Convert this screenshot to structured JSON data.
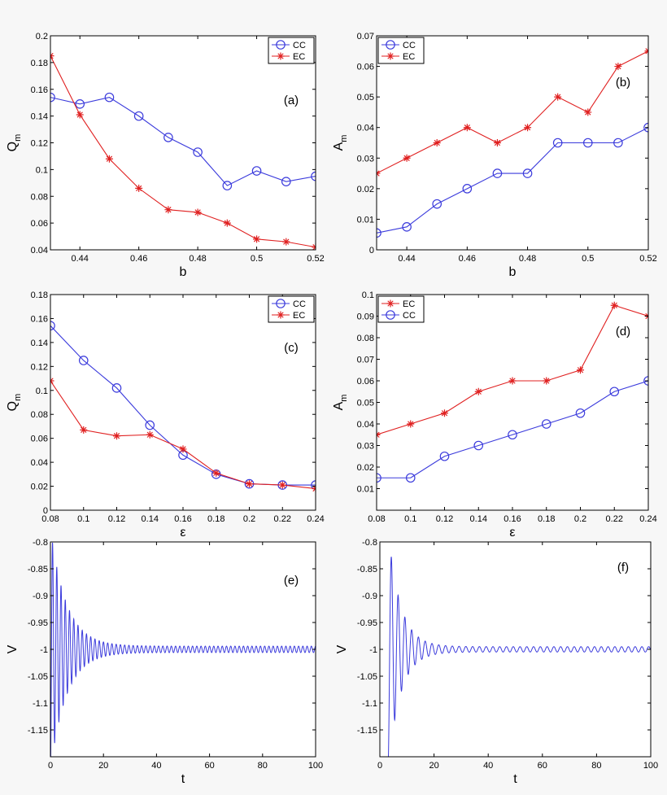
{
  "colors": {
    "cc": "#3b3bdc",
    "ec": "#e02020",
    "axis": "#000000",
    "bg": "#f7f7f7",
    "panel_bg": "#ffffff"
  },
  "chart_data": [
    {
      "id": "a",
      "type": "line",
      "panel_label": "(a)",
      "xlabel": "b",
      "ylabel_main": "Q",
      "ylabel_sub": "m",
      "xlim": [
        0.43,
        0.52
      ],
      "ylim": [
        0.04,
        0.2
      ],
      "xticks": [
        0.44,
        0.46,
        0.48,
        0.5,
        0.52
      ],
      "xtick_labels": [
        "0.44",
        "0.46",
        "0.48",
        "0.5",
        "0.52"
      ],
      "yticks": [
        0.04,
        0.06,
        0.08,
        0.1,
        0.12,
        0.14,
        0.16,
        0.18,
        0.2
      ],
      "ytick_labels": [
        "0.04",
        "0.06",
        "0.08",
        "0.1",
        "0.12",
        "0.14",
        "0.16",
        "0.18",
        "0.2"
      ],
      "legend": "top-right",
      "series": [
        {
          "name": "CC",
          "marker": "circle",
          "color": "#3b3bdc",
          "x": [
            0.43,
            0.44,
            0.45,
            0.46,
            0.47,
            0.48,
            0.49,
            0.5,
            0.51,
            0.52
          ],
          "y": [
            0.154,
            0.149,
            0.154,
            0.14,
            0.124,
            0.113,
            0.088,
            0.099,
            0.091,
            0.095
          ]
        },
        {
          "name": "EC",
          "marker": "star",
          "color": "#e02020",
          "x": [
            0.43,
            0.44,
            0.45,
            0.46,
            0.47,
            0.48,
            0.49,
            0.5,
            0.51,
            0.52
          ],
          "y": [
            0.185,
            0.141,
            0.108,
            0.086,
            0.07,
            0.068,
            0.06,
            0.048,
            0.046,
            0.042
          ]
        }
      ]
    },
    {
      "id": "b",
      "type": "line",
      "panel_label": "(b)",
      "xlabel": "b",
      "ylabel_main": "A",
      "ylabel_sub": "m",
      "xlim": [
        0.43,
        0.52
      ],
      "ylim": [
        0,
        0.07
      ],
      "xticks": [
        0.44,
        0.46,
        0.48,
        0.5,
        0.52
      ],
      "xtick_labels": [
        "0.44",
        "0.46",
        "0.48",
        "0.5",
        "0.52"
      ],
      "yticks": [
        0,
        0.01,
        0.02,
        0.03,
        0.04,
        0.05,
        0.06,
        0.07
      ],
      "ytick_labels": [
        "0",
        "0.01",
        "0.02",
        "0.03",
        "0.04",
        "0.05",
        "0.06",
        "0.07"
      ],
      "legend": "top-left",
      "series": [
        {
          "name": "CC",
          "marker": "circle",
          "color": "#3b3bdc",
          "x": [
            0.43,
            0.44,
            0.45,
            0.46,
            0.47,
            0.48,
            0.49,
            0.5,
            0.51,
            0.52
          ],
          "y": [
            0.0055,
            0.0075,
            0.015,
            0.02,
            0.025,
            0.025,
            0.035,
            0.035,
            0.035,
            0.04
          ]
        },
        {
          "name": "EC",
          "marker": "star",
          "color": "#e02020",
          "x": [
            0.43,
            0.44,
            0.45,
            0.46,
            0.47,
            0.48,
            0.49,
            0.5,
            0.51,
            0.52
          ],
          "y": [
            0.025,
            0.03,
            0.035,
            0.04,
            0.035,
            0.04,
            0.05,
            0.045,
            0.06,
            0.065
          ]
        }
      ]
    },
    {
      "id": "c",
      "type": "line",
      "panel_label": "(c)",
      "xlabel": "ε",
      "ylabel_main": "Q",
      "ylabel_sub": "m",
      "xlim": [
        0.08,
        0.24
      ],
      "ylim": [
        0,
        0.18
      ],
      "xticks": [
        0.08,
        0.1,
        0.12,
        0.14,
        0.16,
        0.18,
        0.2,
        0.22,
        0.24
      ],
      "xtick_labels": [
        "0.08",
        "0.1",
        "0.12",
        "0.14",
        "0.16",
        "0.18",
        "0.2",
        "0.22",
        "0.24"
      ],
      "yticks": [
        0,
        0.02,
        0.04,
        0.06,
        0.08,
        0.1,
        0.12,
        0.14,
        0.16,
        0.18
      ],
      "ytick_labels": [
        "0",
        "0.02",
        "0.04",
        "0.06",
        "0.08",
        "0.1",
        "0.12",
        "0.14",
        "0.16",
        "0.18"
      ],
      "legend": "top-right",
      "series": [
        {
          "name": "CC",
          "marker": "circle",
          "color": "#3b3bdc",
          "x": [
            0.08,
            0.1,
            0.12,
            0.14,
            0.16,
            0.18,
            0.2,
            0.22,
            0.24
          ],
          "y": [
            0.154,
            0.125,
            0.102,
            0.071,
            0.046,
            0.03,
            0.022,
            0.021,
            0.021
          ]
        },
        {
          "name": "EC",
          "marker": "star",
          "color": "#e02020",
          "x": [
            0.08,
            0.1,
            0.12,
            0.14,
            0.16,
            0.18,
            0.2,
            0.22,
            0.24
          ],
          "y": [
            0.108,
            0.067,
            0.062,
            0.063,
            0.051,
            0.031,
            0.022,
            0.021,
            0.018
          ]
        }
      ]
    },
    {
      "id": "d",
      "type": "line",
      "panel_label": "(d)",
      "xlabel": "ε",
      "ylabel_main": "A",
      "ylabel_sub": "m",
      "xlim": [
        0.08,
        0.24
      ],
      "ylim": [
        0,
        0.1
      ],
      "xticks": [
        0.08,
        0.1,
        0.12,
        0.14,
        0.16,
        0.18,
        0.2,
        0.22,
        0.24
      ],
      "xtick_labels": [
        "0.08",
        "0.1",
        "0.12",
        "0.14",
        "0.16",
        "0.18",
        "0.2",
        "0.22",
        "0.24"
      ],
      "yticks": [
        0.01,
        0.02,
        0.03,
        0.04,
        0.05,
        0.06,
        0.07,
        0.08,
        0.09,
        0.1
      ],
      "ytick_labels": [
        "0.01",
        "0.02",
        "0.03",
        "0.04",
        "0.05",
        "0.06",
        "0.07",
        "0.08",
        "0.09",
        "0.1"
      ],
      "legend": "top-left",
      "series": [
        {
          "name": "EC",
          "marker": "star",
          "color": "#e02020",
          "x": [
            0.08,
            0.1,
            0.12,
            0.14,
            0.16,
            0.18,
            0.2,
            0.22,
            0.24
          ],
          "y": [
            0.035,
            0.04,
            0.045,
            0.055,
            0.06,
            0.06,
            0.065,
            0.095,
            0.09
          ]
        },
        {
          "name": "CC",
          "marker": "circle",
          "color": "#3b3bdc",
          "x": [
            0.08,
            0.1,
            0.12,
            0.14,
            0.16,
            0.18,
            0.2,
            0.22,
            0.24
          ],
          "y": [
            0.015,
            0.015,
            0.025,
            0.03,
            0.035,
            0.04,
            0.045,
            0.055,
            0.06
          ]
        }
      ]
    },
    {
      "id": "e",
      "type": "line",
      "panel_label": "(e)",
      "xlabel": "t",
      "ylabel_main": "V",
      "ylabel_sub": "",
      "xlim": [
        0,
        100
      ],
      "ylim": [
        -1.2,
        -0.8
      ],
      "xticks": [
        0,
        20,
        40,
        60,
        80,
        100
      ],
      "xtick_labels": [
        "0",
        "20",
        "40",
        "60",
        "80",
        "100"
      ],
      "yticks": [
        -1.15,
        -1.1,
        -1.05,
        -1,
        -0.95,
        -0.9,
        -0.85,
        -0.8
      ],
      "ytick_labels": [
        "-1.15",
        "-1.1",
        "-1.05",
        "-1",
        "-0.95",
        "-0.9",
        "-0.85",
        "-0.8"
      ],
      "legend": "none",
      "signal": {
        "baseline": -1.0,
        "initial_amplitude": 0.22,
        "decay_time": 6.0,
        "steady_amplitude": 0.006,
        "period": 1.6,
        "t_start": 0,
        "t_end": 100,
        "color": "#3b3bdc"
      }
    },
    {
      "id": "f",
      "type": "line",
      "panel_label": "(f)",
      "xlabel": "t",
      "ylabel_main": "V",
      "ylabel_sub": "",
      "xlim": [
        0,
        100
      ],
      "ylim": [
        -1.2,
        -0.8
      ],
      "xticks": [
        0,
        20,
        40,
        60,
        80,
        100
      ],
      "xtick_labels": [
        "0",
        "20",
        "40",
        "60",
        "80",
        "100"
      ],
      "yticks": [
        -1.15,
        -1.1,
        -1.05,
        -1,
        -0.95,
        -0.9,
        -0.85,
        -0.8
      ],
      "ytick_labels": [
        "-1.15",
        "-1.1",
        "-1.05",
        "-1",
        "-0.95",
        "-0.9",
        "-0.85",
        "-0.8"
      ],
      "legend": "none",
      "signal": {
        "baseline": -1.0,
        "initial_amplitude": 0.22,
        "decay_time": 4.5,
        "steady_amplitude": 0.005,
        "period": 2.5,
        "t_start": 3,
        "t_end": 100,
        "color": "#3b3bdc"
      }
    }
  ]
}
